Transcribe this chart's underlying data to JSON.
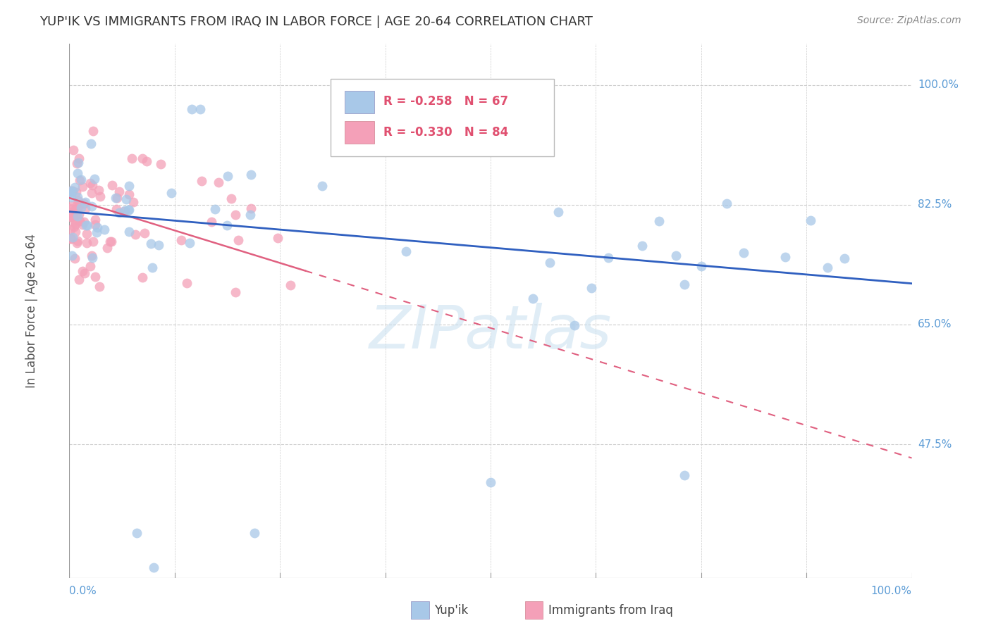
{
  "title": "YUP'IK VS IMMIGRANTS FROM IRAQ IN LABOR FORCE | AGE 20-64 CORRELATION CHART",
  "source": "Source: ZipAtlas.com",
  "ylabel": "In Labor Force | Age 20-64",
  "xlim": [
    0.0,
    1.0
  ],
  "ylim": [
    0.28,
    1.06
  ],
  "yticks": [
    0.475,
    0.65,
    0.825,
    1.0
  ],
  "ytick_labels": [
    "47.5%",
    "65.0%",
    "82.5%",
    "100.0%"
  ],
  "xtick_vals": [
    0.0,
    0.125,
    0.25,
    0.375,
    0.5,
    0.625,
    0.75,
    0.875,
    1.0
  ],
  "grid_color": "#cccccc",
  "background_color": "#ffffff",
  "blue_color": "#a8c8e8",
  "pink_color": "#f4a0b8",
  "tick_color": "#5b9bd5",
  "blue_trend_color": "#3060c0",
  "pink_trend_color": "#e06080",
  "legend_text_color": "#e05070",
  "watermark": "ZIPatlas",
  "blue_seed": 99,
  "pink_seed": 77
}
